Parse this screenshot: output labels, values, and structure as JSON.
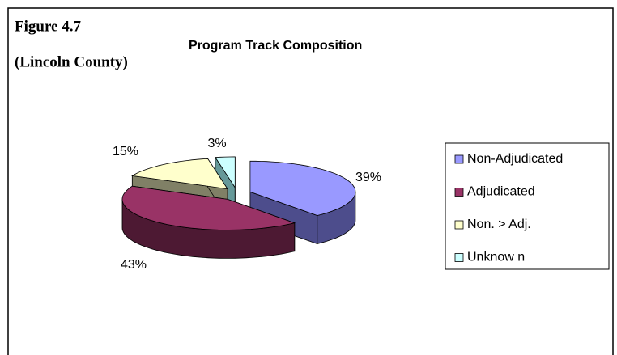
{
  "chart_data": {
    "type": "pie",
    "title": "Program Track Composition",
    "figure_label": "Figure 4.7",
    "figure_sublabel": "(Lincoln County)",
    "categories": [
      "Non-Adjudicated",
      "Adjudicated",
      "Non. > Adj.",
      "Unknow n"
    ],
    "values": [
      39,
      43,
      15,
      3
    ],
    "value_labels": [
      "39%",
      "43%",
      "15%",
      "3%"
    ],
    "colors": [
      "#9999ff",
      "#993366",
      "#ffffcc",
      "#ccffff"
    ],
    "side_colors": [
      "#4d4d8c",
      "#4d1933",
      "#808066",
      "#669999"
    ],
    "legend": "right"
  }
}
